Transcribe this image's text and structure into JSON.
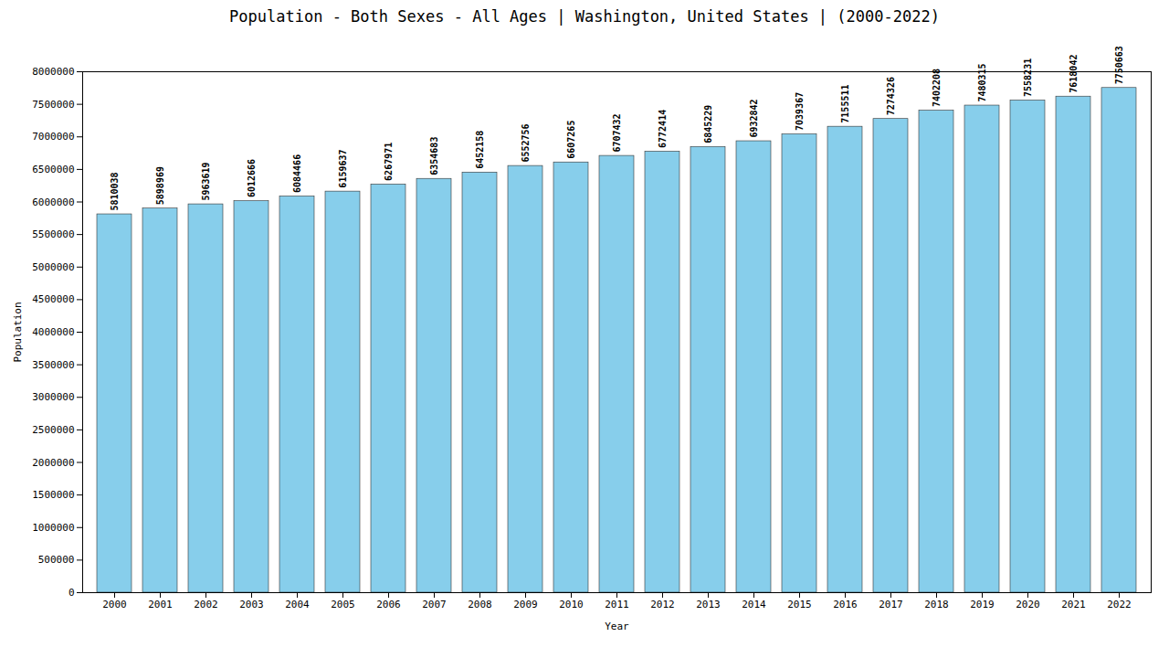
{
  "chart_data": {
    "type": "bar",
    "title": "Population - Both Sexes - All Ages | Washington, United States |   (2000-2022)",
    "xlabel": "Year",
    "ylabel": "Population",
    "categories": [
      "2000",
      "2001",
      "2002",
      "2003",
      "2004",
      "2005",
      "2006",
      "2007",
      "2008",
      "2009",
      "2010",
      "2011",
      "2012",
      "2013",
      "2014",
      "2015",
      "2016",
      "2017",
      "2018",
      "2019",
      "2020",
      "2021",
      "2022"
    ],
    "values": [
      5810038,
      5898969,
      5963619,
      6012666,
      6084466,
      6159637,
      6267971,
      6354683,
      6452158,
      6552756,
      6607265,
      6707432,
      6772414,
      6845229,
      6932842,
      7039367,
      7155511,
      7274326,
      7402208,
      7480315,
      7558231,
      7618042,
      7750663
    ],
    "color": "#87CEEB",
    "ylim": [
      0,
      8000000
    ],
    "yticks": [
      0,
      500000,
      1000000,
      1500000,
      2000000,
      2500000,
      3000000,
      3500000,
      4000000,
      4500000,
      5000000,
      5500000,
      6000000,
      6500000,
      7000000,
      7500000,
      8000000
    ],
    "grid": false,
    "data_labels": true
  }
}
